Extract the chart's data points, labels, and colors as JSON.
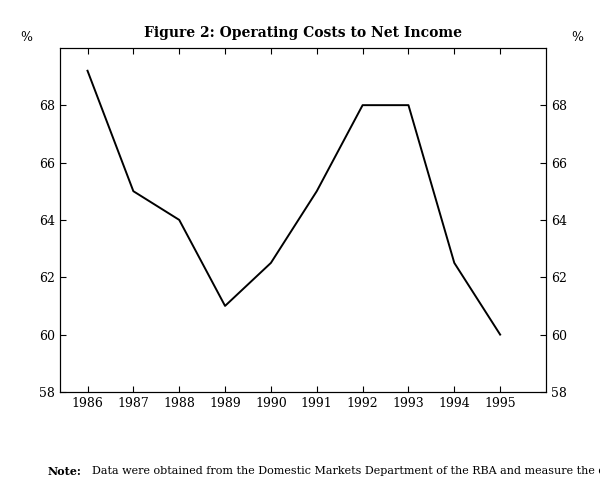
{
  "title": "Figure 2: Operating Costs to Net Income",
  "x_values": [
    1986,
    1987,
    1988,
    1989,
    1990,
    1991,
    1992,
    1993,
    1994,
    1995
  ],
  "y_values": [
    69.2,
    65.0,
    64.0,
    61.0,
    62.5,
    65.0,
    68.0,
    68.0,
    62.5,
    60.0
  ],
  "ylim": [
    58,
    70
  ],
  "xlim": [
    1985.4,
    1996.0
  ],
  "yticks": [
    58,
    60,
    62,
    64,
    66,
    68
  ],
  "xticks": [
    1986,
    1987,
    1988,
    1989,
    1990,
    1991,
    1992,
    1993,
    1994,
    1995
  ],
  "line_color": "#000000",
  "line_width": 1.4,
  "note_text_bold": "Note:",
  "note_text_regular": "  Data were obtained from the Domestic Markets Department of the RBA and measure the domestic\n         operations of banks.",
  "background_color": "#ffffff",
  "title_fontsize": 10,
  "tick_fontsize": 9,
  "note_fontsize": 8,
  "pct_label_fontsize": 9
}
